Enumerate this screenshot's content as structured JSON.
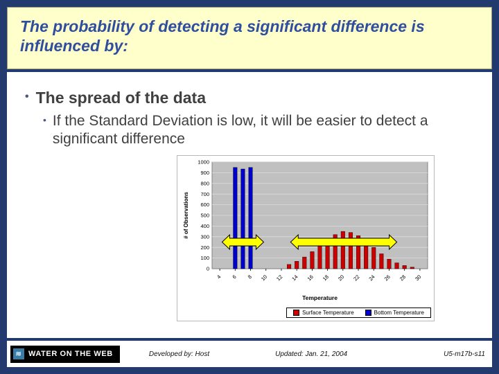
{
  "slide": {
    "title": "The probability of detecting a significant difference is influenced by:",
    "bullet1": "The spread of the data",
    "bullet2": "If the Standard Deviation is low, it will be easier to detect a significant difference"
  },
  "footer": {
    "logo_text": "WATER ON THE WEB",
    "developed": "Developed by: Host",
    "updated": "Updated: Jan. 21, 2004",
    "slide_id": "U5-m17b-s11"
  },
  "icons": {
    "bullet": "•",
    "water": "≋"
  },
  "colors": {
    "slide_bg": "#233A6E",
    "header_bg": "#FFFFCC",
    "header_text": "#2F4E9E",
    "content_bg": "#FFFFFF",
    "body_text": "#404040",
    "bar_red": "#CC0000",
    "bar_blue": "#0000CC",
    "arrow_yellow": "#FFFF00",
    "plot_bg": "#C0C0C0"
  },
  "chart_data": {
    "type": "bar",
    "title": "",
    "xlabel": "Temperature",
    "ylabel": "# of Observations",
    "xlim": [
      3,
      31
    ],
    "ylim": [
      0,
      1000
    ],
    "ytick_step": 100,
    "xticks": [
      4,
      6,
      8,
      10,
      12,
      14,
      16,
      18,
      20,
      22,
      24,
      26,
      28,
      30
    ],
    "plot_bg": "#C0C0C0",
    "grid": "horizontal",
    "legend_position": "bottom-right",
    "series": [
      {
        "name": "Surface Temperature",
        "color": "#CC0000",
        "points": [
          [
            13,
            40
          ],
          [
            14,
            70
          ],
          [
            15,
            110
          ],
          [
            16,
            160
          ],
          [
            17,
            220
          ],
          [
            18,
            280
          ],
          [
            19,
            320
          ],
          [
            20,
            350
          ],
          [
            21,
            340
          ],
          [
            22,
            310
          ],
          [
            23,
            260
          ],
          [
            24,
            200
          ],
          [
            25,
            140
          ],
          [
            26,
            90
          ],
          [
            27,
            55
          ],
          [
            28,
            30
          ],
          [
            29,
            15
          ]
        ]
      },
      {
        "name": "Bottom Temperature",
        "color": "#0000CC",
        "points": [
          [
            6,
            950
          ],
          [
            7,
            935
          ],
          [
            8,
            950
          ]
        ]
      }
    ],
    "annotations": [
      {
        "type": "double-arrow",
        "x1": 4.3,
        "x2": 9.7,
        "y": 250,
        "color": "#FFFF00"
      },
      {
        "type": "double-arrow",
        "x1": 13.2,
        "x2": 27.0,
        "y": 250,
        "color": "#FFFF00"
      }
    ]
  }
}
